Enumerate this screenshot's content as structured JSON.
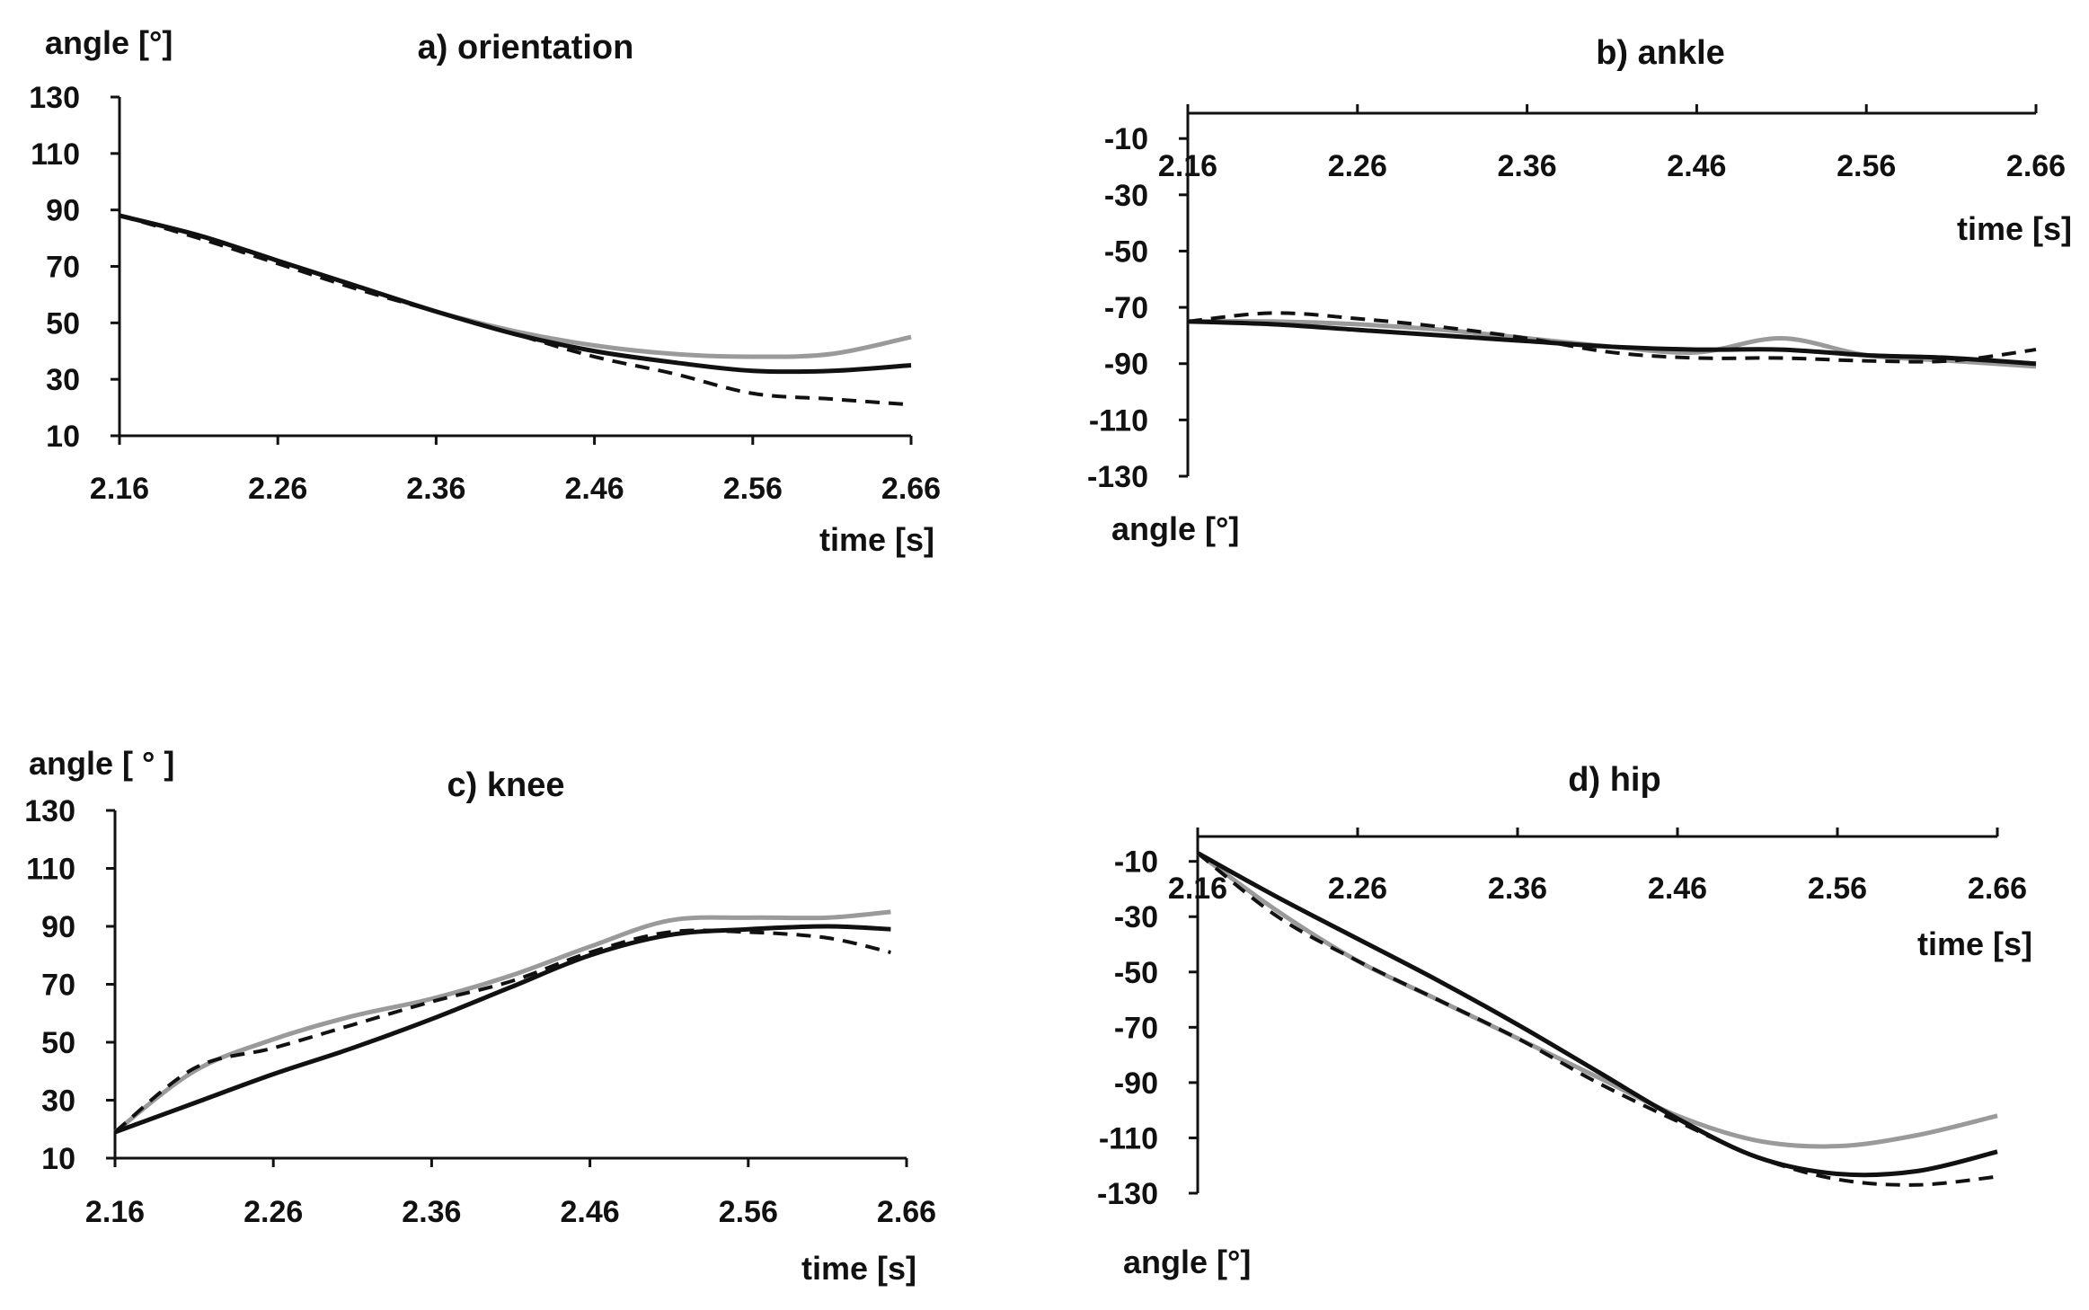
{
  "chart_data": [
    {
      "type": "line",
      "title": "a) orientation",
      "xlabel": "time [s]",
      "ylabel": "angle [°]",
      "xlim": [
        2.16,
        2.66
      ],
      "ylim": [
        10,
        130
      ],
      "x_ticks": [
        "2.16",
        "2.26",
        "2.36",
        "2.46",
        "2.56",
        "2.66"
      ],
      "y_ticks": [
        "10",
        "30",
        "50",
        "70",
        "90",
        "110",
        "130"
      ],
      "x": [
        2.16,
        2.21,
        2.26,
        2.31,
        2.36,
        2.41,
        2.46,
        2.51,
        2.56,
        2.61,
        2.66
      ],
      "series": [
        {
          "style": "grey",
          "color": "#9a9a9a",
          "values": [
            88,
            81,
            72,
            63,
            54,
            47,
            42,
            39,
            38,
            39,
            45
          ]
        },
        {
          "style": "solid",
          "color": "#111111",
          "values": [
            88,
            81,
            72,
            63,
            54,
            46,
            40,
            36,
            33,
            33,
            35
          ]
        },
        {
          "style": "dashed",
          "color": "#111111",
          "values": [
            88,
            80,
            71,
            62,
            54,
            46,
            38,
            32,
            25,
            23,
            21
          ]
        }
      ]
    },
    {
      "type": "line",
      "title": "b) ankle",
      "xlabel": "time [s]",
      "ylabel": "angle [°]",
      "xlim": [
        2.16,
        2.66
      ],
      "ylim": [
        -130,
        -1
      ],
      "x_ticks": [
        "2.16",
        "2.26",
        "2.36",
        "2.46",
        "2.56",
        "2.66"
      ],
      "y_ticks": [
        "-130",
        "-110",
        "-90",
        "-70",
        "-50",
        "-30",
        "-10"
      ],
      "x": [
        2.16,
        2.21,
        2.26,
        2.31,
        2.36,
        2.41,
        2.46,
        2.51,
        2.56,
        2.61,
        2.66
      ],
      "series": [
        {
          "style": "grey",
          "color": "#9a9a9a",
          "values": [
            -75,
            -75,
            -76,
            -78,
            -81,
            -84,
            -86,
            -81,
            -87,
            -89,
            -91
          ]
        },
        {
          "style": "solid",
          "color": "#111111",
          "values": [
            -75,
            -76,
            -78,
            -80,
            -82,
            -84,
            -85,
            -85,
            -87,
            -88,
            -90
          ]
        },
        {
          "style": "dashed",
          "color": "#111111",
          "values": [
            -75,
            -72,
            -74,
            -77,
            -81,
            -86,
            -88,
            -88,
            -89,
            -89,
            -85
          ]
        }
      ]
    },
    {
      "type": "line",
      "title": "c) knee",
      "xlabel": "time [s]",
      "ylabel": "angle [ ° ]",
      "xlim": [
        2.16,
        2.66
      ],
      "ylim": [
        10,
        130
      ],
      "x_ticks": [
        "2.16",
        "2.26",
        "2.36",
        "2.46",
        "2.56",
        "2.66"
      ],
      "y_ticks": [
        "10",
        "30",
        "50",
        "70",
        "90",
        "110",
        "130"
      ],
      "x": [
        2.16,
        2.21,
        2.26,
        2.31,
        2.36,
        2.41,
        2.46,
        2.51,
        2.56,
        2.61,
        2.65
      ],
      "series": [
        {
          "style": "grey",
          "color": "#9a9a9a",
          "values": [
            19,
            40,
            51,
            59,
            65,
            73,
            83,
            92,
            93,
            93,
            95
          ]
        },
        {
          "style": "solid",
          "color": "#111111",
          "values": [
            19,
            29,
            39,
            48,
            58,
            69,
            80,
            87,
            89,
            90,
            89
          ]
        },
        {
          "style": "dashed",
          "color": "#111111",
          "values": [
            19,
            41,
            48,
            56,
            64,
            71,
            81,
            88,
            88,
            86,
            81
          ]
        }
      ]
    },
    {
      "type": "line",
      "title": "d) hip",
      "xlabel": "time [s]",
      "ylabel": "angle [°]",
      "xlim": [
        2.16,
        2.66
      ],
      "ylim": [
        -130,
        -1
      ],
      "x_ticks": [
        "2.16",
        "2.26",
        "2.36",
        "2.46",
        "2.56",
        "2.66"
      ],
      "y_ticks": [
        "-130",
        "-110",
        "-90",
        "-70",
        "-50",
        "-30",
        "-10"
      ],
      "x": [
        2.16,
        2.21,
        2.26,
        2.31,
        2.36,
        2.41,
        2.46,
        2.51,
        2.56,
        2.61,
        2.66
      ],
      "series": [
        {
          "style": "grey",
          "color": "#9a9a9a",
          "values": [
            -7,
            -28,
            -46,
            -60,
            -74,
            -88,
            -102,
            -111,
            -113,
            -109,
            -102
          ]
        },
        {
          "style": "solid",
          "color": "#111111",
          "values": [
            -7,
            -23,
            -38,
            -53,
            -69,
            -86,
            -103,
            -117,
            -123,
            -122,
            -115
          ]
        },
        {
          "style": "dashed",
          "color": "#111111",
          "values": [
            -7,
            -30,
            -46,
            -60,
            -74,
            -90,
            -104,
            -117,
            -125,
            -127,
            -124
          ]
        }
      ]
    }
  ]
}
